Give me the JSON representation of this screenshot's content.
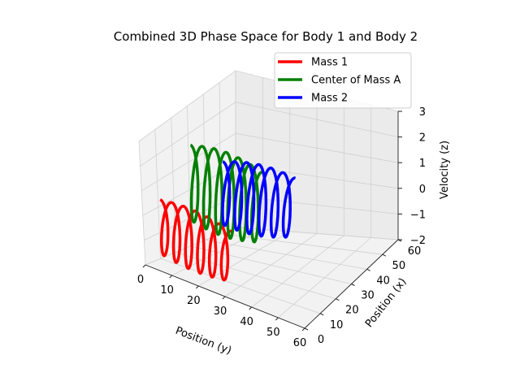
{
  "chart_data": {
    "type": "line",
    "projection": "3d",
    "title": "Combined 3D Phase Space for Body 1 and Body 2",
    "xlabel": "Position (y)",
    "ylabel": "Position (x)",
    "zlabel": "Velocity (z)",
    "xlim": [
      0,
      60
    ],
    "ylim": [
      0,
      60
    ],
    "zlim": [
      -2,
      3
    ],
    "x_ticks": [
      "0",
      "10",
      "20",
      "30",
      "40",
      "50",
      "60"
    ],
    "y_ticks": [
      "0",
      "10",
      "20",
      "30",
      "40",
      "50",
      "60"
    ],
    "z_ticks": [
      "−2",
      "−1",
      "0",
      "1",
      "2",
      "3"
    ],
    "grid": true,
    "legend_position": "upper-right",
    "series": [
      {
        "name": "Mass 1",
        "color": "#ff0000",
        "position_x_mean": 5,
        "position_y_range": [
          3,
          30
        ],
        "velocity_amplitude": 1.0,
        "velocity_offset": -0.45,
        "loops": 6
      },
      {
        "name": "Center of Mass A",
        "color": "#008000",
        "position_x_mean": 25,
        "position_y_range": [
          3,
          30
        ],
        "velocity_amplitude": 1.3,
        "velocity_offset": 0.55,
        "loops": 6
      },
      {
        "name": "Mass 2",
        "color": "#0000ff",
        "position_x_mean": 45,
        "position_y_range": [
          3,
          30
        ],
        "velocity_amplitude": 1.0,
        "velocity_offset": -0.45,
        "loops": 6
      }
    ]
  }
}
